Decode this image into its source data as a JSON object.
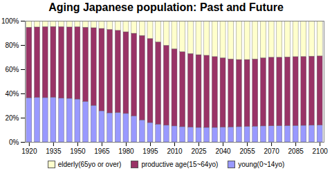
{
  "chart_data": {
    "type": "bar",
    "stacked": true,
    "title": "Aging Japanese population: Past and Future",
    "x": [
      1920,
      1925,
      1930,
      1935,
      1940,
      1945,
      1950,
      1955,
      1960,
      1965,
      1970,
      1975,
      1980,
      1985,
      1990,
      1995,
      2000,
      2005,
      2010,
      2015,
      2020,
      2025,
      2030,
      2035,
      2040,
      2045,
      2050,
      2055,
      2060,
      2065,
      2070,
      2075,
      2080,
      2085,
      2090,
      2095,
      2100
    ],
    "xlim": [
      1917.5,
      2102.5
    ],
    "xticks": [
      1920,
      1935,
      1950,
      1965,
      1980,
      1995,
      2010,
      2025,
      2040,
      2055,
      2070,
      2085,
      2100
    ],
    "ylim": [
      0,
      100
    ],
    "yticks": [
      {
        "value": 0,
        "label": "0%"
      },
      {
        "value": 20,
        "label": "20%"
      },
      {
        "value": 40,
        "label": "40%"
      },
      {
        "value": 60,
        "label": "60%"
      },
      {
        "value": 80,
        "label": "80%"
      },
      {
        "value": 100,
        "label": "100%"
      }
    ],
    "grid": false,
    "legend": "bottom",
    "series": [
      {
        "name": "young(0~14yo)",
        "color": "#9999ff",
        "values": [
          36.5,
          36.7,
          36.6,
          36.9,
          36.1,
          36.0,
          35.4,
          33.4,
          30.2,
          25.7,
          24.0,
          24.3,
          23.5,
          21.5,
          18.2,
          16.0,
          14.6,
          13.8,
          13.2,
          12.6,
          12.2,
          12.0,
          12.0,
          12.0,
          12.2,
          12.4,
          12.6,
          12.8,
          13.0,
          13.2,
          13.3,
          13.4,
          13.5,
          13.6,
          13.7,
          13.8,
          13.9
        ]
      },
      {
        "name": "productive age(15~64yo)",
        "color": "#993366",
        "values": [
          58.2,
          58.2,
          58.6,
          58.4,
          59.1,
          58.9,
          59.7,
          61.3,
          64.1,
          68.0,
          68.9,
          67.8,
          67.4,
          68.2,
          69.7,
          69.4,
          68.0,
          66.0,
          63.7,
          61.9,
          60.8,
          60.0,
          59.5,
          58.5,
          57.3,
          56.1,
          55.4,
          55.2,
          55.5,
          56.3,
          56.7,
          56.6,
          56.7,
          56.8,
          56.9,
          57.0,
          57.1
        ]
      },
      {
        "name": "elderly(65yo or over)",
        "color": "#ffffcc",
        "values": [
          5.3,
          5.1,
          4.8,
          4.7,
          4.8,
          5.1,
          4.9,
          5.3,
          5.7,
          6.3,
          7.1,
          7.9,
          9.1,
          10.3,
          12.1,
          14.6,
          17.4,
          20.2,
          23.1,
          25.5,
          27.0,
          28.0,
          28.5,
          29.5,
          30.5,
          31.5,
          32.0,
          32.0,
          31.5,
          30.5,
          30.0,
          30.0,
          29.8,
          29.6,
          29.4,
          29.2,
          29.0
        ]
      }
    ]
  }
}
